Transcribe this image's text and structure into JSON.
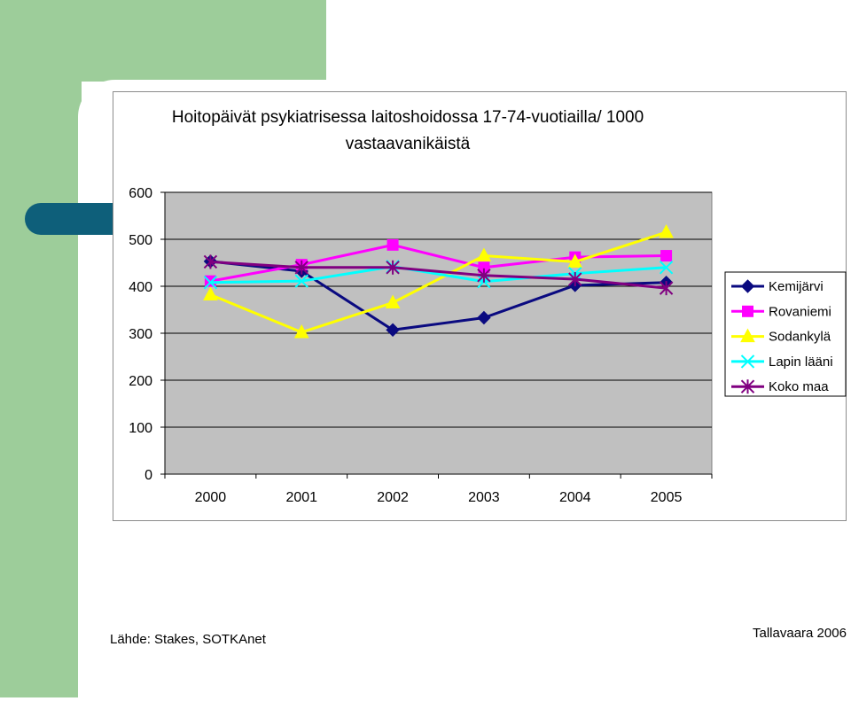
{
  "colors": {
    "Kemijärvi": "#0a0a80",
    "Rovaniemi": "#ff00ff",
    "Sodankylä": "#ffff00",
    "Lapin lääni": "#00ffff",
    "Koko maa": "#800080",
    "plot_bg": "#c0c0c0",
    "green_accent": "#9dcd9a",
    "teal_accent": "#0e5f7a"
  },
  "footer": {
    "source": "Lähde: Stakes, SOTKAnet",
    "author": "Tallavaara 2006"
  },
  "chart_data": {
    "type": "line",
    "title": "Hoitopäivät psykiatrisessa laitoshoidossa 17-74-vuotiailla/ 1000 vastaavanikäistä",
    "title_lines": [
      "Hoitopäivät psykiatrisessa laitoshoidossa 17-74-vuotiailla/ 1000",
      "vastaavanikäistä"
    ],
    "xlabel": "",
    "ylabel": "",
    "categories": [
      "2000",
      "2001",
      "2002",
      "2003",
      "2004",
      "2005"
    ],
    "ylim": [
      0,
      600
    ],
    "yticks": [
      0,
      100,
      200,
      300,
      400,
      500,
      600
    ],
    "grid": true,
    "legend_position": "right",
    "series": [
      {
        "name": "Kemijärvi",
        "marker": "diamond",
        "values": [
          453,
          432,
          307,
          333,
          402,
          408
        ]
      },
      {
        "name": "Rovaniemi",
        "marker": "square",
        "values": [
          411,
          446,
          488,
          440,
          462,
          465
        ]
      },
      {
        "name": "Sodankylä",
        "marker": "triangle",
        "values": [
          382,
          302,
          365,
          465,
          452,
          515
        ]
      },
      {
        "name": "Lapin lääni",
        "marker": "x",
        "values": [
          408,
          411,
          442,
          410,
          427,
          440
        ]
      },
      {
        "name": "Koko maa",
        "marker": "star",
        "values": [
          452,
          440,
          440,
          423,
          415,
          396
        ]
      }
    ]
  }
}
